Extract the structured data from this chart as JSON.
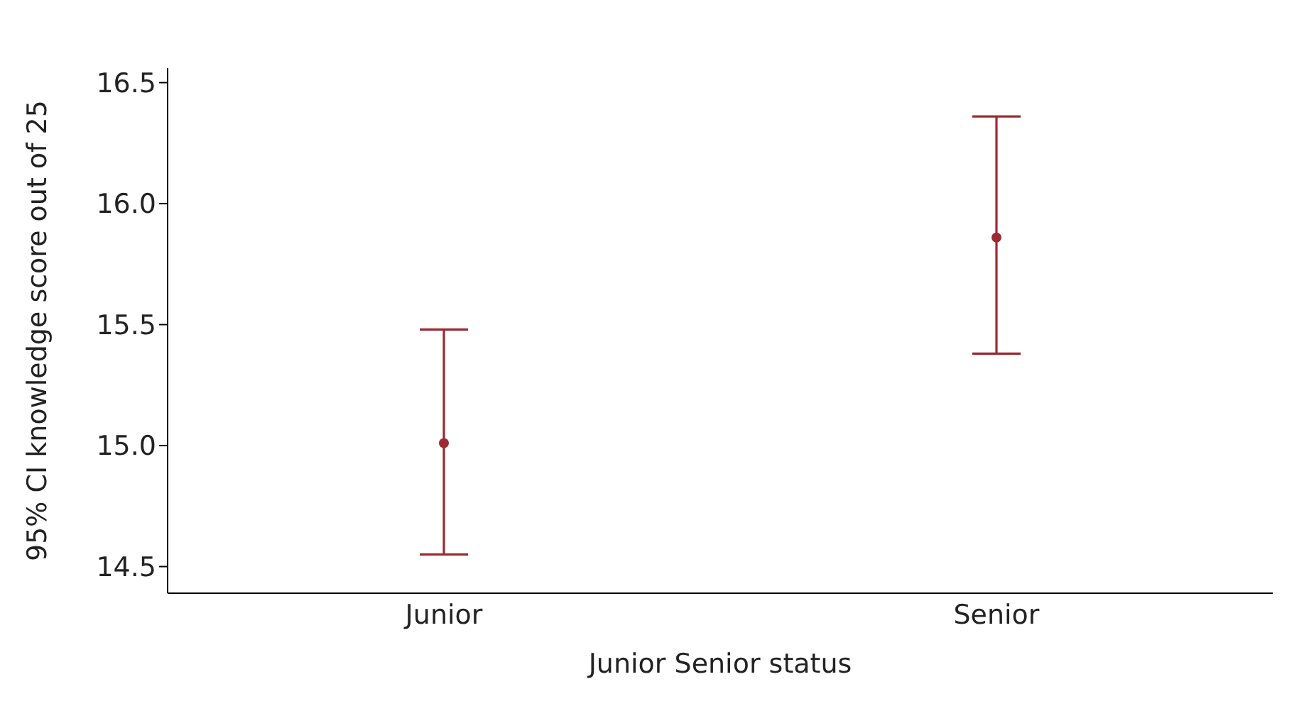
{
  "chart_data": {
    "type": "scatter",
    "xlabel": "Junior Senior status",
    "ylabel": "95% CI knowledge score out of 25",
    "categories": [
      "Junior",
      "Senior"
    ],
    "values": [
      15.01,
      15.86
    ],
    "errors": [
      [
        14.55,
        15.48
      ],
      [
        15.38,
        16.36
      ]
    ],
    "color": "#9b2a32",
    "marker": "circle",
    "ylim": [
      14.39,
      16.56
    ],
    "yticks": [
      {
        "value": 14.5,
        "label": "14.5"
      },
      {
        "value": 15,
        "label": "15.0"
      },
      {
        "value": 15.5,
        "label": "15.5"
      },
      {
        "value": 16,
        "label": "16.0"
      },
      {
        "value": 16.5,
        "label": "16.5"
      }
    ]
  }
}
